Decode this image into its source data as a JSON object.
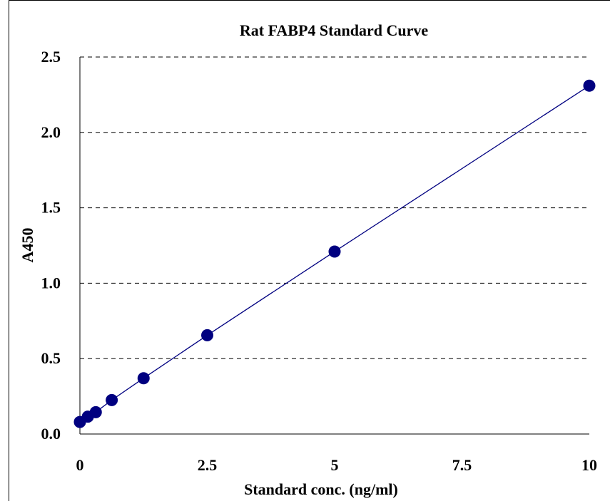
{
  "chart_data": {
    "type": "scatter",
    "title": "Rat FABP4 Standard Curve",
    "xlabel": "Standard conc. (ng/ml)",
    "ylabel": "A450",
    "xlim": [
      0,
      10
    ],
    "ylim": [
      0,
      2.5
    ],
    "x_ticks": [
      "0",
      "2.5",
      "5",
      "7.5",
      "10"
    ],
    "x_tick_values": [
      0,
      2.5,
      5,
      7.5,
      10
    ],
    "y_ticks": [
      "0.0",
      "0.5",
      "1.0",
      "1.5",
      "2.0",
      "2.5"
    ],
    "y_tick_values": [
      0,
      0.5,
      1.0,
      1.5,
      2.0,
      2.5
    ],
    "grid": "horizontal dashed",
    "legend": "none",
    "marker_color": "#000080",
    "line_color": "#000080",
    "series": [
      {
        "x": [
          0,
          0.156,
          0.312,
          0.625,
          1.25,
          2.5,
          5,
          10
        ],
        "y": [
          0.08,
          0.115,
          0.145,
          0.225,
          0.37,
          0.655,
          1.21,
          2.31
        ]
      }
    ]
  }
}
